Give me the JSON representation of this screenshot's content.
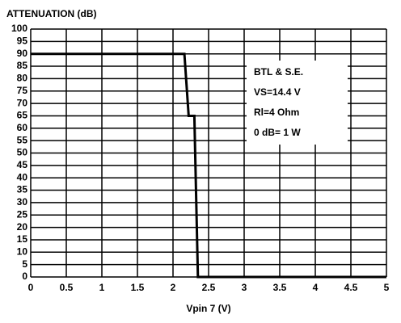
{
  "chart_data": {
    "type": "line",
    "title": "ATTENUATION (dB)",
    "x_label": "Vpin 7 (V)",
    "x": [
      0,
      2.16,
      2.22,
      2.3,
      2.35,
      5
    ],
    "values": [
      90,
      90,
      65,
      65,
      0,
      0
    ],
    "color": "#000000",
    "xlim": [
      0,
      5
    ],
    "xticks": [
      0,
      0.5,
      1,
      1.5,
      2,
      2.5,
      3,
      3.5,
      4,
      4.5,
      5
    ],
    "ylim": [
      0,
      100
    ],
    "yticks": [
      0,
      5,
      10,
      15,
      20,
      25,
      30,
      35,
      40,
      45,
      50,
      55,
      60,
      65,
      70,
      75,
      80,
      85,
      90,
      95,
      100
    ],
    "grid": true,
    "annotations": [
      "BTL & S.E.",
      "VS=14.4 V",
      "Rl=4 Ohm",
      "0 dB= 1 W"
    ]
  }
}
